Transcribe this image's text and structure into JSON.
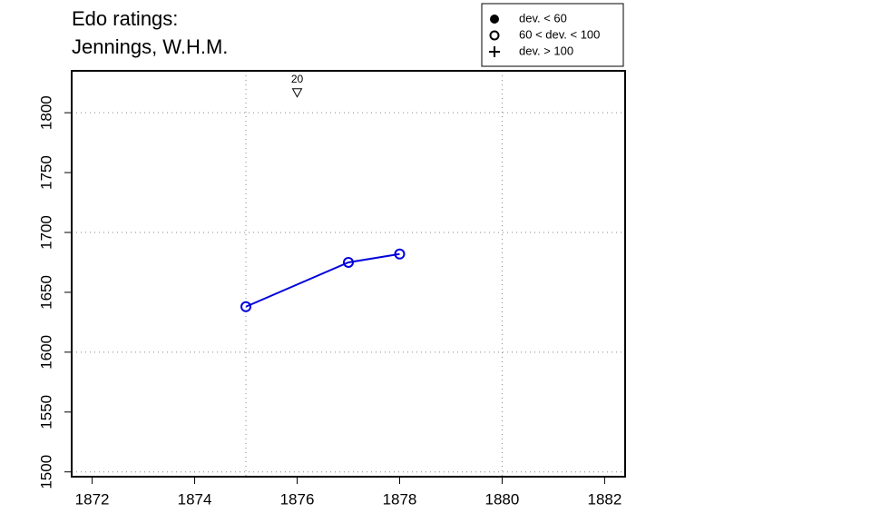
{
  "chart_data": {
    "type": "line",
    "title": [
      "Edo ratings:",
      "Jennings, W.H.M."
    ],
    "x": [
      1875,
      1877,
      1878
    ],
    "series": [
      {
        "color": "#0000dd",
        "marker": "open-circle",
        "values": [
          1638,
          1675,
          1682
        ]
      }
    ],
    "xlim": [
      1871.6,
      1882.4
    ],
    "xticks": [
      1872,
      1874,
      1876,
      1878,
      1880,
      1882
    ],
    "ylim": [
      1496,
      1835
    ],
    "yticks": [
      1500,
      1550,
      1600,
      1650,
      1700,
      1750,
      1800
    ],
    "grid": true,
    "xgrid": [
      1875,
      1880
    ],
    "ygrid": [
      1500,
      1600,
      1700,
      1800
    ],
    "annotations": [
      {
        "x": 1876,
        "y": 1817,
        "label": "20"
      }
    ],
    "legend_position": "top-right",
    "legend": [
      {
        "label": "dev. < 60",
        "marker": "filled-circle"
      },
      {
        "label": "60 < dev. < 100",
        "marker": "open-circle"
      },
      {
        "label": "dev. > 100",
        "marker": "plus"
      }
    ]
  }
}
